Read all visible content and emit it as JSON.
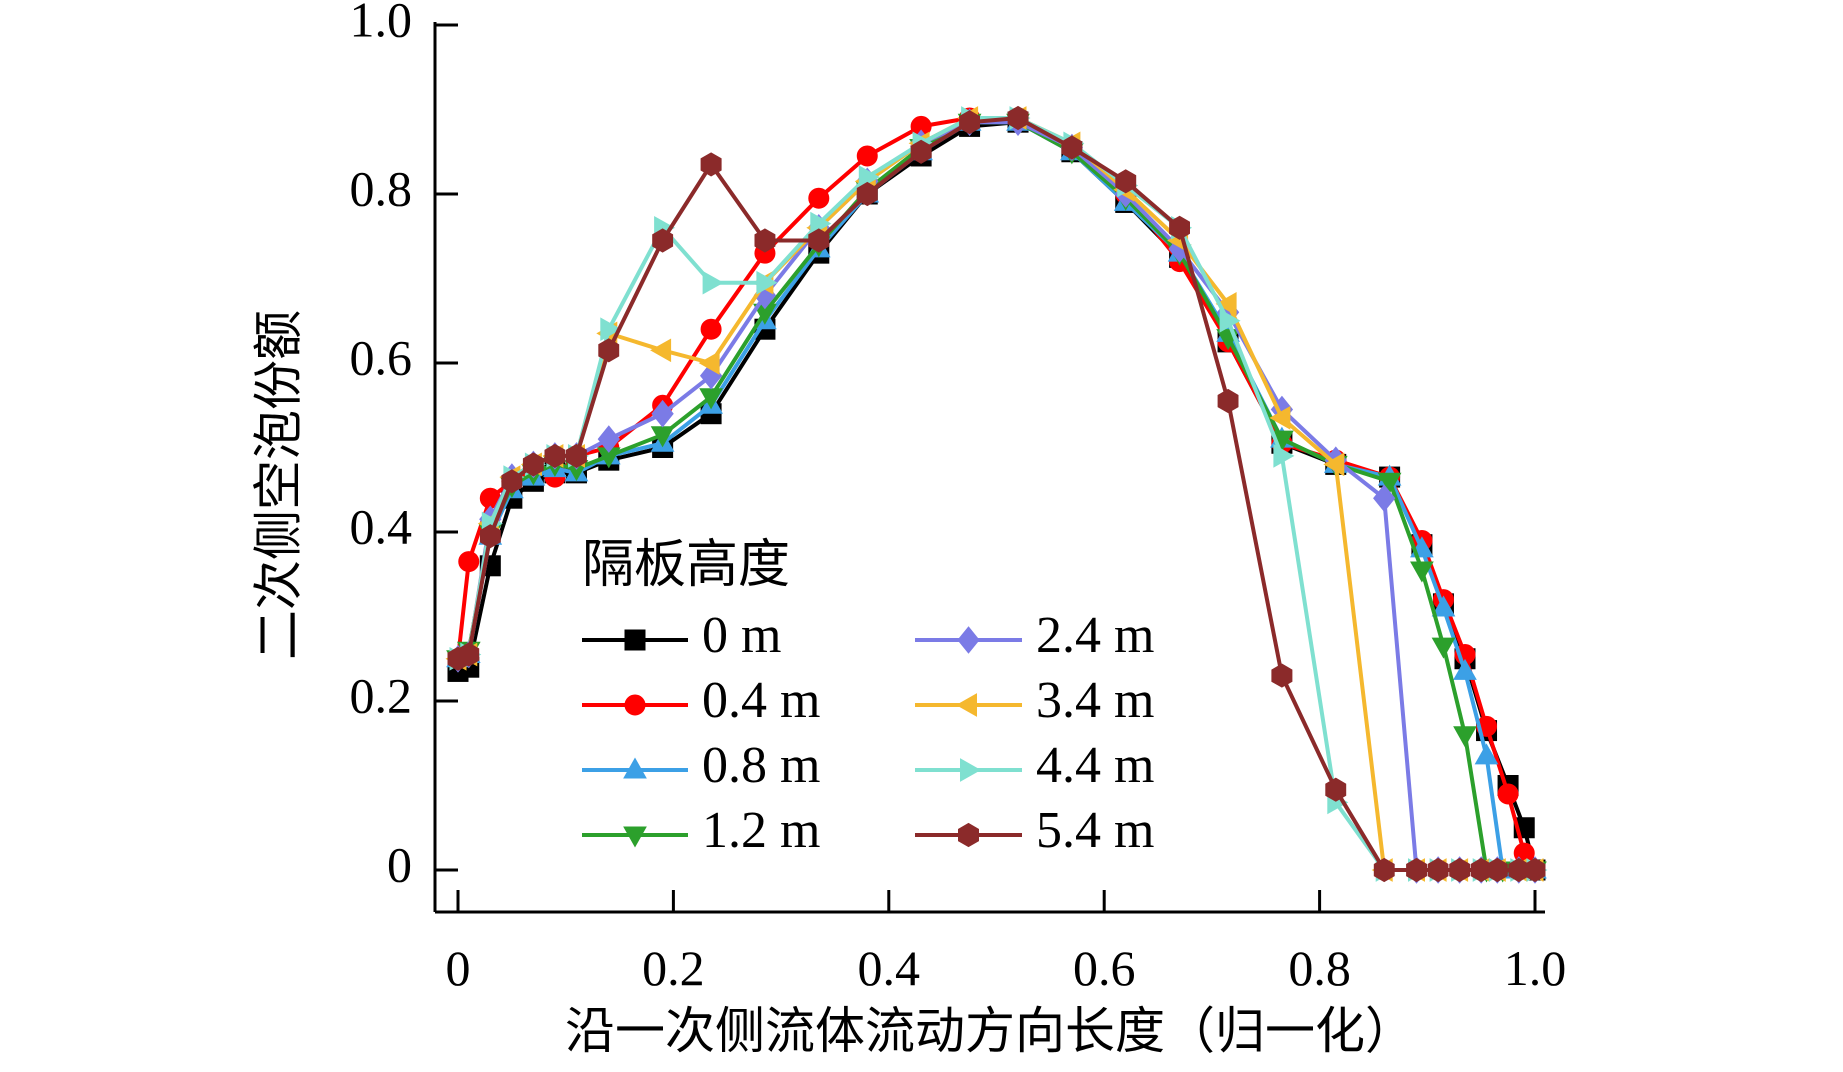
{
  "chart_data": {
    "type": "line",
    "xlabel": "沿一次侧流体流动方向长度（归一化）",
    "ylabel": "二次侧空泡份额",
    "xlim": [
      -0.02,
      1.0
    ],
    "ylim": [
      -0.05,
      1.0
    ],
    "x_ticks": [
      0,
      0.2,
      0.4,
      0.6,
      0.8,
      1.0
    ],
    "x_tick_labels": [
      "0",
      "0.2",
      "0.4",
      "0.6",
      "0.8",
      "1.0"
    ],
    "y_ticks": [
      0,
      0.2,
      0.4,
      0.6,
      0.8,
      1.0
    ],
    "y_tick_labels": [
      "0",
      "0.2",
      "0.4",
      "0.6",
      "0.8",
      "1.0"
    ],
    "grid": false,
    "legend": {
      "title": "隔板高度",
      "placement": "center-left"
    },
    "series": [
      {
        "name": "0 m",
        "color": "#000000",
        "marker": "square",
        "x": [
          0.0,
          0.01,
          0.03,
          0.05,
          0.07,
          0.09,
          0.11,
          0.14,
          0.19,
          0.235,
          0.285,
          0.335,
          0.38,
          0.43,
          0.475,
          0.52,
          0.57,
          0.62,
          0.67,
          0.715,
          0.765,
          0.815,
          0.865,
          0.895,
          0.915,
          0.935,
          0.955,
          0.975,
          0.99,
          1.0
        ],
        "y": [
          0.235,
          0.24,
          0.36,
          0.44,
          0.46,
          0.47,
          0.47,
          0.485,
          0.5,
          0.54,
          0.64,
          0.73,
          0.8,
          0.845,
          0.88,
          0.885,
          0.85,
          0.79,
          0.725,
          0.625,
          0.505,
          0.48,
          0.465,
          0.385,
          0.315,
          0.25,
          0.165,
          0.1,
          0.05,
          0.0
        ]
      },
      {
        "name": "0.4 m",
        "color": "#ff0000",
        "marker": "circle",
        "x": [
          0.0,
          0.01,
          0.03,
          0.05,
          0.07,
          0.09,
          0.11,
          0.14,
          0.19,
          0.235,
          0.285,
          0.335,
          0.38,
          0.43,
          0.475,
          0.52,
          0.57,
          0.62,
          0.67,
          0.715,
          0.765,
          0.815,
          0.865,
          0.895,
          0.915,
          0.935,
          0.955,
          0.975,
          0.99,
          1.0
        ],
        "y": [
          0.25,
          0.365,
          0.44,
          0.46,
          0.475,
          0.465,
          0.49,
          0.5,
          0.55,
          0.64,
          0.73,
          0.795,
          0.845,
          0.88,
          0.89,
          0.89,
          0.855,
          0.8,
          0.72,
          0.625,
          0.505,
          0.485,
          0.465,
          0.39,
          0.32,
          0.255,
          0.17,
          0.09,
          0.02,
          0.0
        ]
      },
      {
        "name": "0.8 m",
        "color": "#3ca0e6",
        "marker": "triangle-up",
        "x": [
          0.0,
          0.01,
          0.03,
          0.05,
          0.07,
          0.09,
          0.11,
          0.14,
          0.19,
          0.235,
          0.285,
          0.335,
          0.38,
          0.43,
          0.475,
          0.52,
          0.57,
          0.62,
          0.67,
          0.715,
          0.765,
          0.815,
          0.865,
          0.895,
          0.915,
          0.935,
          0.955,
          0.97,
          0.985,
          1.0
        ],
        "y": [
          0.25,
          0.255,
          0.395,
          0.45,
          0.465,
          0.475,
          0.47,
          0.49,
          0.505,
          0.55,
          0.65,
          0.735,
          0.8,
          0.85,
          0.885,
          0.885,
          0.85,
          0.79,
          0.73,
          0.635,
          0.51,
          0.48,
          0.465,
          0.38,
          0.31,
          0.235,
          0.135,
          0.0,
          0.0,
          0.0
        ]
      },
      {
        "name": "1.2 m",
        "color": "#2ca02c",
        "marker": "triangle-down",
        "x": [
          0.0,
          0.01,
          0.03,
          0.05,
          0.07,
          0.09,
          0.11,
          0.14,
          0.19,
          0.235,
          0.285,
          0.335,
          0.38,
          0.43,
          0.475,
          0.52,
          0.57,
          0.62,
          0.67,
          0.715,
          0.765,
          0.815,
          0.865,
          0.895,
          0.915,
          0.935,
          0.955,
          0.97,
          0.985,
          1.0
        ],
        "y": [
          0.25,
          0.26,
          0.4,
          0.455,
          0.47,
          0.48,
          0.475,
          0.49,
          0.515,
          0.56,
          0.66,
          0.74,
          0.805,
          0.855,
          0.885,
          0.885,
          0.85,
          0.795,
          0.73,
          0.63,
          0.51,
          0.48,
          0.46,
          0.355,
          0.265,
          0.16,
          0.0,
          0.0,
          0.0,
          0.0
        ]
      },
      {
        "name": "2.4 m",
        "color": "#7b7be6",
        "marker": "diamond",
        "x": [
          0.0,
          0.01,
          0.03,
          0.05,
          0.07,
          0.09,
          0.11,
          0.14,
          0.19,
          0.235,
          0.285,
          0.335,
          0.38,
          0.43,
          0.475,
          0.52,
          0.57,
          0.62,
          0.67,
          0.715,
          0.765,
          0.815,
          0.86,
          0.89,
          0.91,
          0.93,
          0.95,
          0.965,
          0.985,
          1.0
        ],
        "y": [
          0.25,
          0.255,
          0.415,
          0.465,
          0.48,
          0.49,
          0.49,
          0.51,
          0.54,
          0.585,
          0.68,
          0.76,
          0.815,
          0.86,
          0.885,
          0.885,
          0.855,
          0.8,
          0.735,
          0.66,
          0.545,
          0.485,
          0.44,
          0.0,
          0.0,
          0.0,
          0.0,
          0.0,
          0.0,
          0.0
        ]
      },
      {
        "name": "3.4 m",
        "color": "#f5b82e",
        "marker": "triangle-left",
        "x": [
          0.0,
          0.01,
          0.03,
          0.05,
          0.07,
          0.09,
          0.11,
          0.14,
          0.19,
          0.235,
          0.285,
          0.335,
          0.38,
          0.43,
          0.475,
          0.52,
          0.57,
          0.62,
          0.67,
          0.715,
          0.765,
          0.815,
          0.86,
          0.89,
          0.91,
          0.93,
          0.95,
          0.965,
          0.985,
          1.0
        ],
        "y": [
          0.25,
          0.255,
          0.41,
          0.465,
          0.48,
          0.49,
          0.49,
          0.635,
          0.615,
          0.6,
          0.695,
          0.76,
          0.815,
          0.86,
          0.89,
          0.89,
          0.86,
          0.805,
          0.745,
          0.67,
          0.535,
          0.48,
          0.0,
          0.0,
          0.0,
          0.0,
          0.0,
          0.0,
          0.0,
          0.0
        ]
      },
      {
        "name": "4.4 m",
        "color": "#7fe0d0",
        "marker": "triangle-right",
        "x": [
          0.0,
          0.01,
          0.03,
          0.05,
          0.07,
          0.09,
          0.11,
          0.14,
          0.19,
          0.235,
          0.285,
          0.335,
          0.38,
          0.43,
          0.475,
          0.52,
          0.57,
          0.62,
          0.67,
          0.715,
          0.765,
          0.815,
          0.86,
          0.89,
          0.91,
          0.93,
          0.95,
          0.965,
          0.985,
          1.0
        ],
        "y": [
          0.25,
          0.255,
          0.41,
          0.465,
          0.48,
          0.49,
          0.49,
          0.64,
          0.76,
          0.695,
          0.695,
          0.765,
          0.82,
          0.86,
          0.89,
          0.89,
          0.86,
          0.81,
          0.76,
          0.65,
          0.49,
          0.08,
          0.0,
          0.0,
          0.0,
          0.0,
          0.0,
          0.0,
          0.0,
          0.0
        ]
      },
      {
        "name": "5.4 m",
        "color": "#8b2a2a",
        "marker": "hexagon",
        "x": [
          0.0,
          0.01,
          0.03,
          0.05,
          0.07,
          0.09,
          0.11,
          0.14,
          0.19,
          0.235,
          0.285,
          0.335,
          0.38,
          0.43,
          0.475,
          0.52,
          0.57,
          0.62,
          0.67,
          0.715,
          0.765,
          0.815,
          0.86,
          0.89,
          0.91,
          0.93,
          0.95,
          0.965,
          0.985,
          1.0
        ],
        "y": [
          0.25,
          0.255,
          0.395,
          0.46,
          0.48,
          0.49,
          0.49,
          0.615,
          0.745,
          0.835,
          0.745,
          0.745,
          0.8,
          0.85,
          0.885,
          0.89,
          0.855,
          0.815,
          0.76,
          0.555,
          0.23,
          0.095,
          0.0,
          0.0,
          0.0,
          0.0,
          0.0,
          0.0,
          0.0,
          0.0
        ]
      }
    ]
  }
}
